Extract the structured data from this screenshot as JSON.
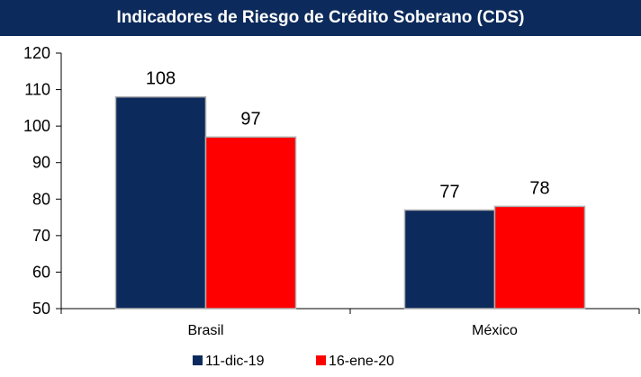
{
  "chart_data": {
    "type": "bar",
    "title": "Indicadores de Riesgo de Crédito Soberano (CDS)",
    "categories": [
      "Brasil",
      "México"
    ],
    "series": [
      {
        "name": "11-dic-19",
        "values": [
          108,
          77
        ],
        "color": "#0c2a5b"
      },
      {
        "name": "16-ene-20",
        "values": [
          97,
          78
        ],
        "color": "#ff0000"
      }
    ],
    "ylim": [
      50,
      120
    ],
    "yticks": [
      50,
      60,
      70,
      80,
      90,
      100,
      110,
      120
    ],
    "grid": false,
    "legend_position": "bottom"
  }
}
